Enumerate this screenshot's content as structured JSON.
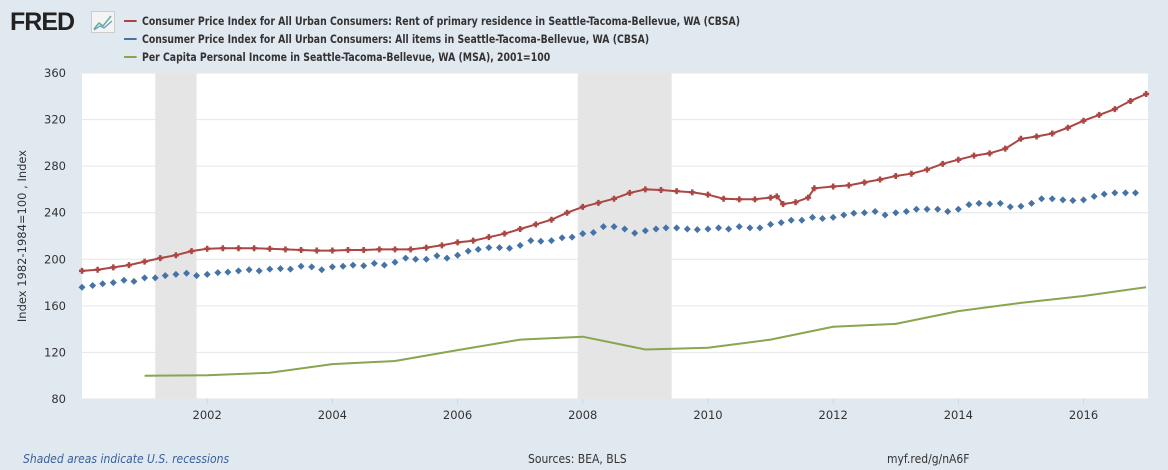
{
  "brand": "FRED",
  "chart_data": {
    "type": "line",
    "ylabel": "Index 1982-1984=100 , Index",
    "ylim": [
      80,
      360
    ],
    "xlim": [
      2000.0,
      2017.03
    ],
    "yticks": [
      "80",
      "120",
      "160",
      "200",
      "240",
      "280",
      "320",
      "360"
    ],
    "xticks": [
      "2002",
      "2004",
      "2006",
      "2008",
      "2010",
      "2012",
      "2014",
      "2016"
    ],
    "grid": true,
    "legend_position": "top",
    "recessions": [
      [
        2001.17,
        2001.83
      ],
      [
        2007.92,
        2009.42
      ]
    ],
    "series": [
      {
        "name": "Consumer Price Index for All Urban Consumers: Rent of primary residence in Seattle-Tacoma-Bellevue, WA (CBSA)",
        "color": "#aa4643",
        "marker": "cross",
        "x": [
          2000,
          2000.25,
          2000.5,
          2000.75,
          2001,
          2001.25,
          2001.5,
          2001.75,
          2002,
          2002.25,
          2002.5,
          2002.75,
          2003,
          2003.25,
          2003.5,
          2003.75,
          2004,
          2004.25,
          2004.5,
          2004.75,
          2005,
          2005.25,
          2005.5,
          2005.75,
          2006,
          2006.25,
          2006.5,
          2006.75,
          2007,
          2007.25,
          2007.5,
          2007.75,
          2008,
          2008.25,
          2008.5,
          2008.75,
          2009,
          2009.25,
          2009.5,
          2009.75,
          2010,
          2010.25,
          2010.5,
          2010.75,
          2011,
          2011.1,
          2011.2,
          2011.4,
          2011.6,
          2011.7,
          2012,
          2012.25,
          2012.5,
          2012.75,
          2013,
          2013.25,
          2013.5,
          2013.75,
          2014,
          2014.25,
          2014.5,
          2014.75,
          2015,
          2015.25,
          2015.5,
          2015.75,
          2016,
          2016.25,
          2016.5,
          2016.75,
          2017
        ],
        "y": [
          190,
          191,
          193,
          195,
          198,
          201,
          203.5,
          207,
          209,
          209.5,
          209.5,
          209.5,
          209,
          208.5,
          208,
          207.5,
          207.5,
          208,
          208,
          208.5,
          208.5,
          208.5,
          210,
          212,
          214.5,
          216,
          219,
          222,
          226,
          230,
          234,
          240,
          245,
          248.5,
          252,
          257,
          260,
          259.5,
          258.5,
          257.5,
          255.5,
          252,
          251.5,
          251.5,
          253,
          254,
          247.5,
          249,
          253,
          261,
          262.5,
          263.5,
          266,
          268.5,
          271.5,
          273.5,
          277,
          282,
          285.5,
          289,
          291,
          295,
          303.5,
          305.5,
          308,
          313,
          319,
          324,
          329,
          336,
          342
        ]
      },
      {
        "name": "Consumer Price Index for All Urban Consumers: All items in Seattle-Tacoma-Bellevue, WA (CBSA)",
        "color": "#4572a7",
        "marker": "diamond",
        "x": [
          2000,
          2000.17,
          2000.33,
          2000.5,
          2000.67,
          2000.83,
          2001,
          2001.17,
          2001.33,
          2001.5,
          2001.67,
          2001.83,
          2002,
          2002.17,
          2002.33,
          2002.5,
          2002.67,
          2002.83,
          2003,
          2003.17,
          2003.33,
          2003.5,
          2003.67,
          2003.83,
          2004,
          2004.17,
          2004.33,
          2004.5,
          2004.67,
          2004.83,
          2005,
          2005.17,
          2005.33,
          2005.5,
          2005.67,
          2005.83,
          2006,
          2006.17,
          2006.33,
          2006.5,
          2006.67,
          2006.83,
          2007,
          2007.17,
          2007.33,
          2007.5,
          2007.67,
          2007.83,
          2008,
          2008.17,
          2008.33,
          2008.5,
          2008.67,
          2008.83,
          2009,
          2009.17,
          2009.33,
          2009.5,
          2009.67,
          2009.83,
          2010,
          2010.17,
          2010.33,
          2010.5,
          2010.67,
          2010.83,
          2011,
          2011.17,
          2011.33,
          2011.5,
          2011.67,
          2011.83,
          2012,
          2012.17,
          2012.33,
          2012.5,
          2012.67,
          2012.83,
          2013,
          2013.17,
          2013.33,
          2013.5,
          2013.67,
          2013.83,
          2014,
          2014.17,
          2014.33,
          2014.5,
          2014.67,
          2014.83,
          2015,
          2015.17,
          2015.33,
          2015.5,
          2015.67,
          2015.83,
          2016,
          2016.17,
          2016.33,
          2016.5,
          2016.67,
          2016.83
        ],
        "y": [
          176,
          177.5,
          179,
          180,
          182,
          181,
          184,
          184,
          186,
          187,
          188,
          186,
          187,
          188.5,
          189,
          190,
          191,
          190,
          191.5,
          192,
          191.5,
          194,
          193.5,
          191,
          193.5,
          194,
          195,
          194.5,
          196.5,
          195,
          197.5,
          201,
          200,
          200,
          203,
          201,
          203.5,
          207,
          208.5,
          210,
          210,
          209.5,
          212,
          216,
          215.5,
          216,
          218.5,
          219,
          222,
          223,
          228,
          228,
          226,
          222.5,
          224.5,
          226,
          227,
          227,
          226,
          225.5,
          226,
          227,
          226,
          228,
          227,
          227,
          230,
          231.5,
          233.5,
          233.5,
          236,
          235,
          236,
          238,
          239.5,
          240,
          241,
          238,
          240,
          241,
          243,
          243,
          243,
          241,
          243,
          247,
          248,
          247.5,
          248,
          245,
          245.5,
          248,
          252,
          252,
          251,
          250.5,
          251,
          254,
          256,
          257,
          257,
          257
        ]
      },
      {
        "name": "Per Capita Personal Income in Seattle-Tacoma-Bellevue, WA (MSA), 2001=100",
        "color": "#89a54e",
        "marker": "none",
        "x": [
          2001,
          2002,
          2003,
          2004,
          2005,
          2006,
          2007,
          2008,
          2009,
          2010,
          2011,
          2012,
          2013,
          2014,
          2015,
          2016,
          2017
        ],
        "y": [
          100,
          100.4,
          102.5,
          110,
          112.6,
          122,
          131,
          133.5,
          122.5,
          124,
          131,
          142,
          144.5,
          155.5,
          162.5,
          168.5,
          176
        ]
      }
    ]
  },
  "footer": {
    "recession_note": "Shaded areas indicate U.S. recessions",
    "sources": "Sources: BEA, BLS",
    "link": "myf.red/g/nA6F"
  }
}
